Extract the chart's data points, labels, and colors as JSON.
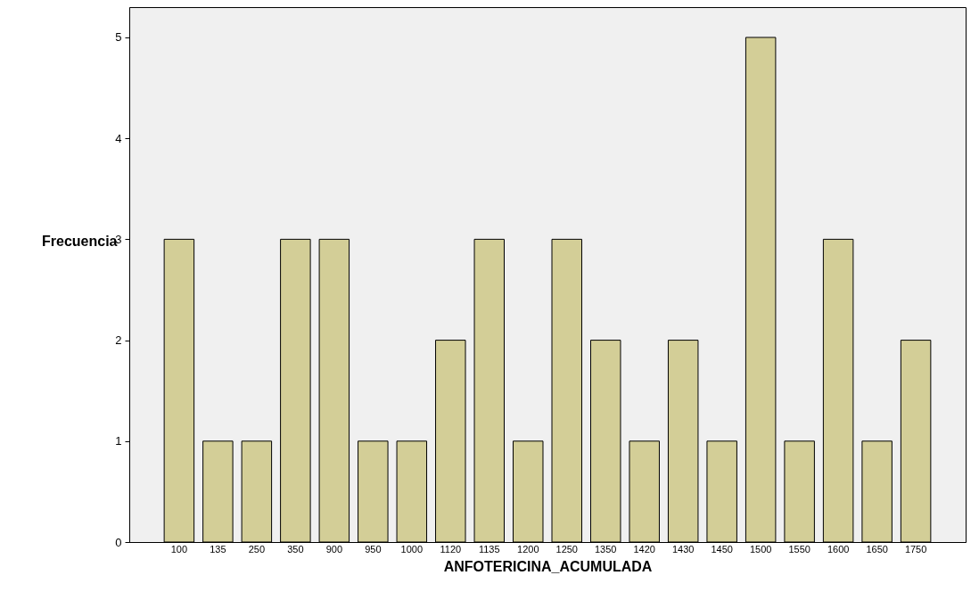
{
  "chart_data": {
    "type": "bar",
    "xlabel": "ANFOTERICINA_ACUMULADA",
    "ylabel": "Frecuencia",
    "categories": [
      "100",
      "135",
      "250",
      "350",
      "900",
      "950",
      "1000",
      "1120",
      "1135",
      "1200",
      "1250",
      "1350",
      "1420",
      "1430",
      "1450",
      "1500",
      "1550",
      "1600",
      "1650",
      "1750"
    ],
    "values": [
      3,
      1,
      1,
      3,
      3,
      1,
      1,
      2,
      3,
      1,
      3,
      2,
      1,
      2,
      1,
      5,
      1,
      3,
      1,
      2
    ],
    "color": "#d3ce97",
    "ylim": [
      0,
      5.3
    ],
    "yticks": [
      0,
      1,
      2,
      3,
      4,
      5
    ],
    "grid": false
  }
}
